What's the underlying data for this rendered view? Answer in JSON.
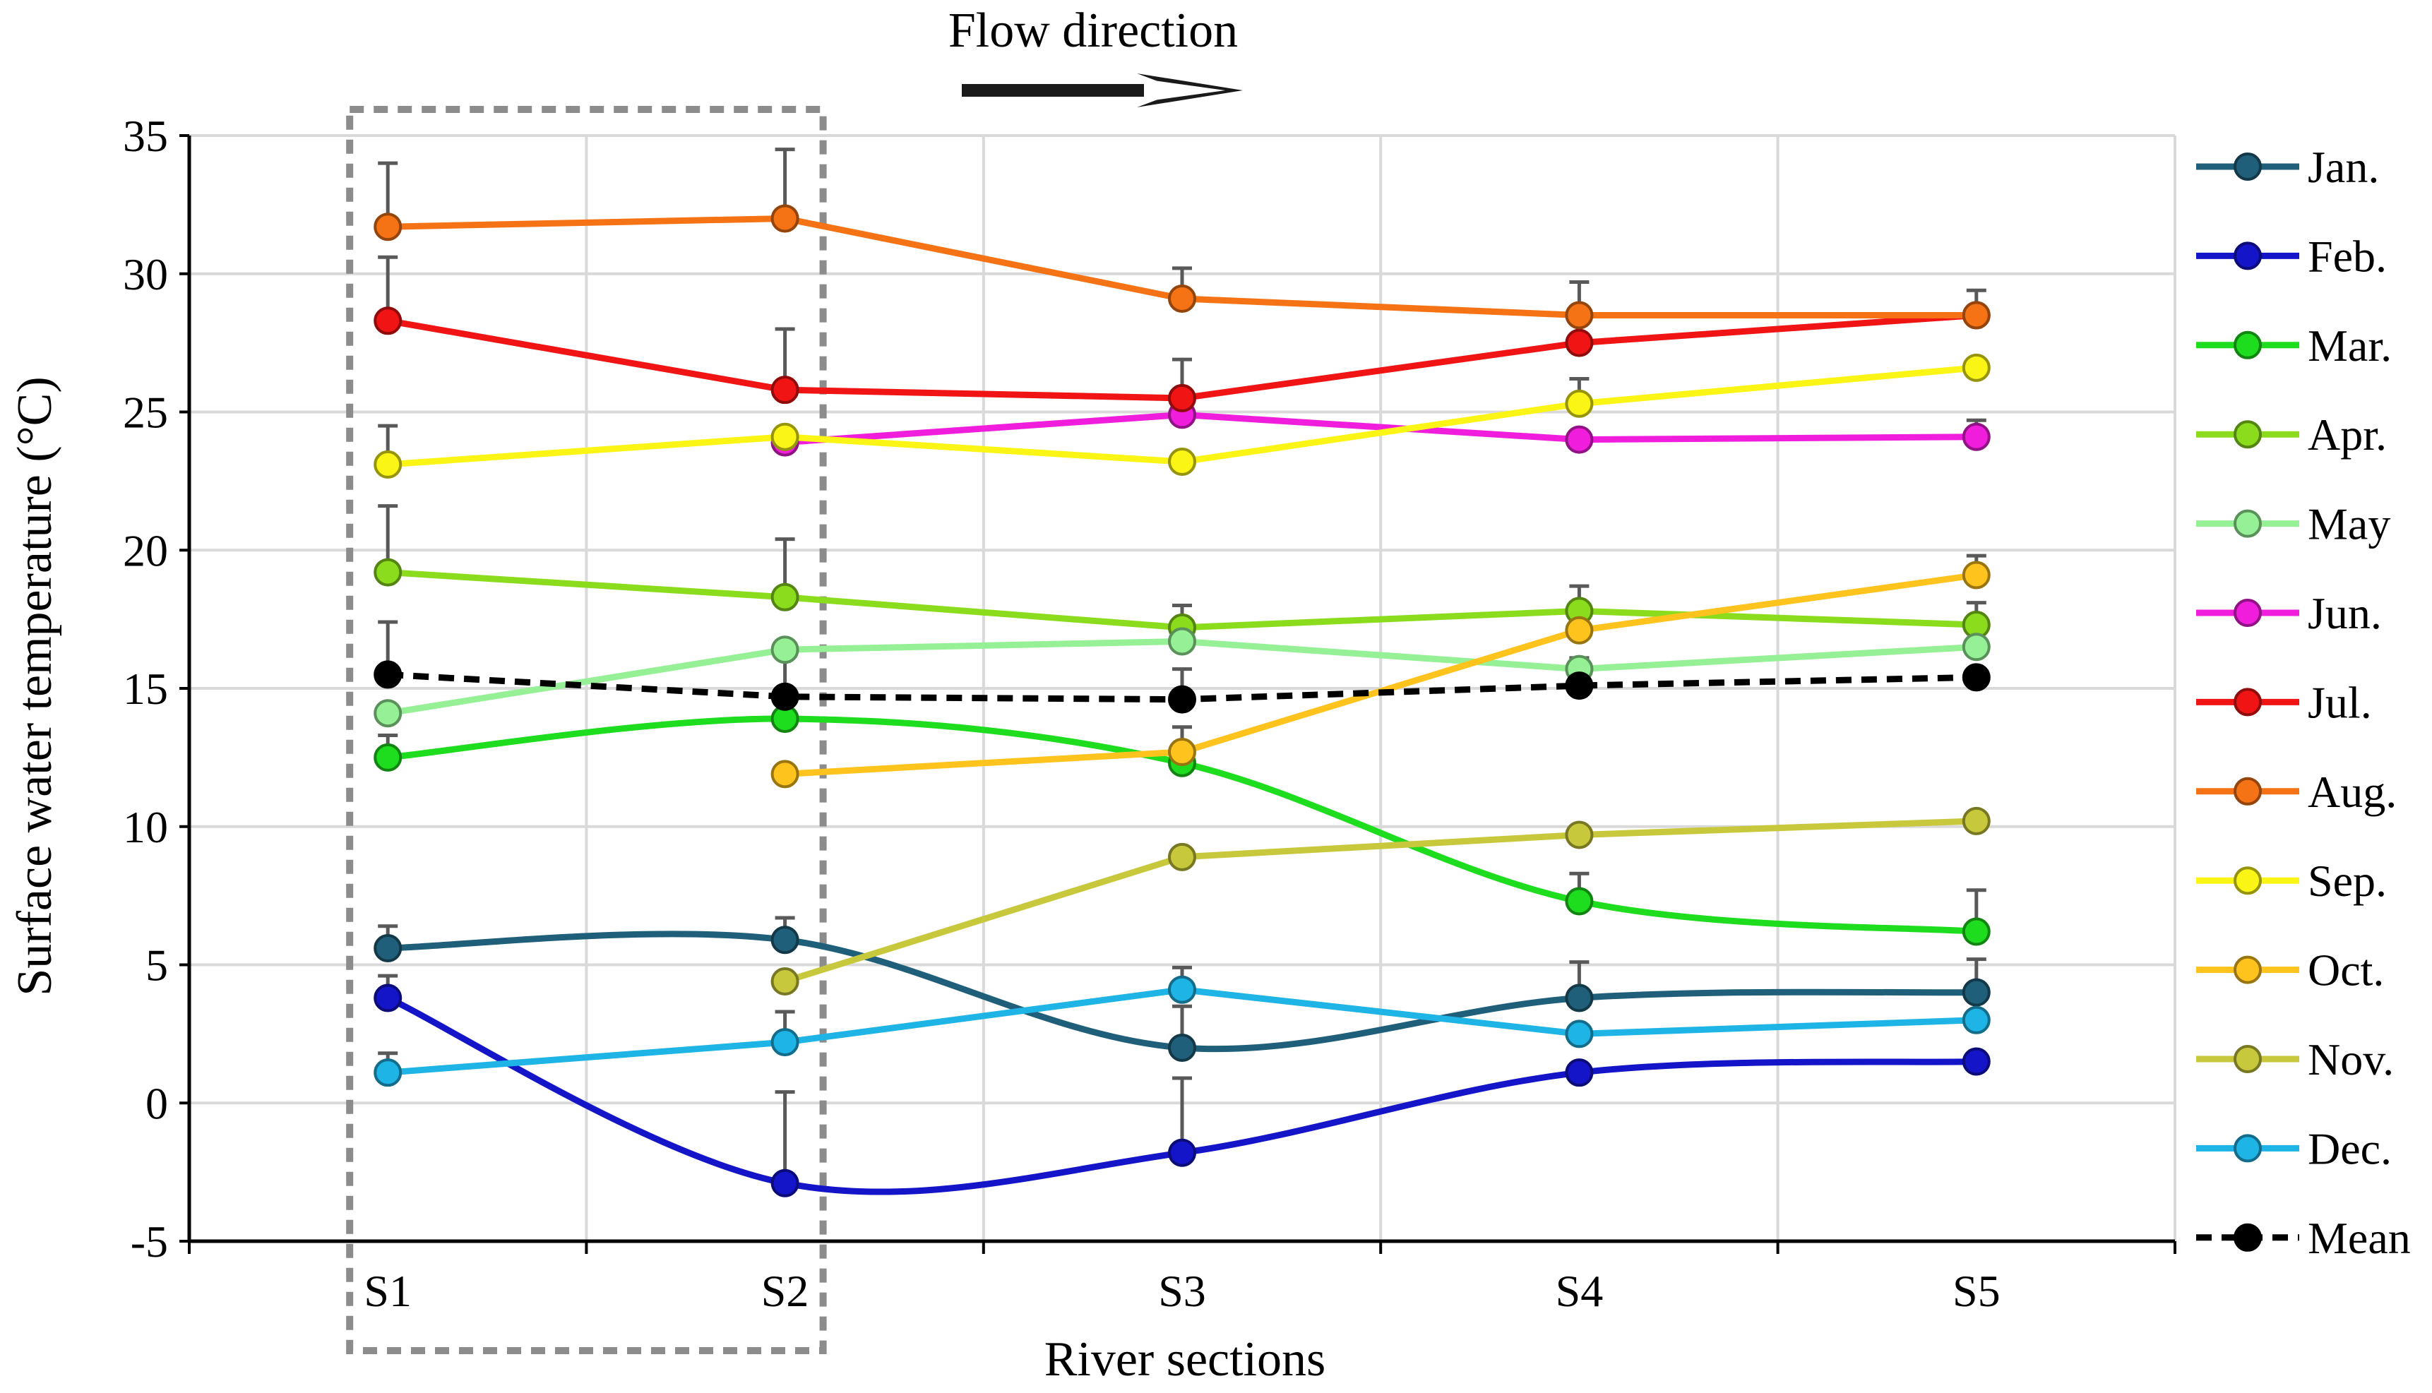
{
  "chart_data": {
    "type": "line",
    "annotation": "Flow direction",
    "xlabel": "River sections",
    "ylabel": "Surface water temperature (°C)",
    "categories": [
      "S1",
      "S2",
      "S3",
      "S4",
      "S5"
    ],
    "ylim": [
      -5,
      35
    ],
    "yticks": [
      -5,
      0,
      5,
      10,
      15,
      20,
      25,
      30,
      35
    ],
    "grid": true,
    "legend_position": "right",
    "highlight": {
      "from": "S1",
      "to": "S2",
      "style": "dashed-box"
    },
    "series": [
      {
        "name": "Jan.",
        "color": "#1F5F7A",
        "dashed": false,
        "smooth": true,
        "values": [
          5.6,
          5.9,
          2.0,
          3.8,
          4.0
        ],
        "errors": [
          0.8,
          0.8,
          1.5,
          1.3,
          1.2
        ]
      },
      {
        "name": "Feb.",
        "color": "#1414C8",
        "dashed": false,
        "smooth": true,
        "values": [
          3.8,
          -2.9,
          -1.8,
          1.1,
          1.5
        ],
        "errors": [
          0.8,
          3.3,
          2.7,
          0,
          0
        ]
      },
      {
        "name": "Mar.",
        "color": "#1EDC1E",
        "dashed": false,
        "smooth": true,
        "values": [
          12.5,
          13.9,
          12.3,
          7.3,
          6.2
        ],
        "errors": [
          0.8,
          0.6,
          1.3,
          1.0,
          1.5
        ]
      },
      {
        "name": "Apr.",
        "color": "#8CDC1E",
        "dashed": false,
        "smooth": false,
        "values": [
          19.2,
          18.3,
          17.2,
          17.8,
          17.3
        ],
        "errors": [
          2.4,
          2.1,
          0.8,
          0.9,
          0.8
        ]
      },
      {
        "name": "May",
        "color": "#96F096",
        "dashed": false,
        "smooth": false,
        "values": [
          14.1,
          16.4,
          16.7,
          15.7,
          16.5
        ],
        "errors": [
          0,
          0,
          0,
          0,
          0
        ]
      },
      {
        "name": "Jun.",
        "color": "#F01EDC",
        "dashed": false,
        "smooth": false,
        "values": [
          null,
          23.9,
          24.9,
          24.0,
          24.1
        ],
        "errors": [
          0,
          0,
          0,
          0,
          0.6
        ]
      },
      {
        "name": "Jul.",
        "color": "#F01414",
        "dashed": false,
        "smooth": false,
        "values": [
          28.3,
          25.8,
          25.5,
          27.5,
          28.5
        ],
        "errors": [
          2.3,
          2.2,
          1.4,
          0,
          0
        ]
      },
      {
        "name": "Aug.",
        "color": "#F57314",
        "dashed": false,
        "smooth": false,
        "values": [
          31.7,
          32.0,
          29.1,
          28.5,
          28.5
        ],
        "errors": [
          2.3,
          2.5,
          1.1,
          1.2,
          0.9
        ]
      },
      {
        "name": "Sep.",
        "color": "#FAF514",
        "dashed": false,
        "smooth": false,
        "values": [
          23.1,
          24.1,
          23.2,
          25.3,
          26.6
        ],
        "errors": [
          1.4,
          0,
          0,
          0.9,
          0
        ]
      },
      {
        "name": "Oct.",
        "color": "#FFC31E",
        "dashed": false,
        "smooth": false,
        "values": [
          null,
          11.9,
          12.7,
          17.1,
          19.1
        ],
        "errors": [
          0,
          0,
          0,
          0,
          0.7
        ]
      },
      {
        "name": "Nov.",
        "color": "#C8C83C",
        "dashed": false,
        "smooth": false,
        "values": [
          null,
          4.4,
          8.9,
          9.7,
          10.2
        ],
        "errors": [
          0,
          0,
          0,
          0,
          0
        ]
      },
      {
        "name": "Dec.",
        "color": "#1EB4E6",
        "dashed": false,
        "smooth": false,
        "values": [
          1.1,
          2.2,
          4.1,
          2.5,
          3.0
        ],
        "errors": [
          0.7,
          1.1,
          0.8,
          0,
          1.0
        ]
      },
      {
        "name": "Mean",
        "color": "#000000",
        "dashed": true,
        "smooth": false,
        "values": [
          15.5,
          14.7,
          14.6,
          15.1,
          15.4
        ],
        "errors": [
          1.9,
          1.7,
          1.1,
          1.0,
          0
        ]
      }
    ]
  }
}
